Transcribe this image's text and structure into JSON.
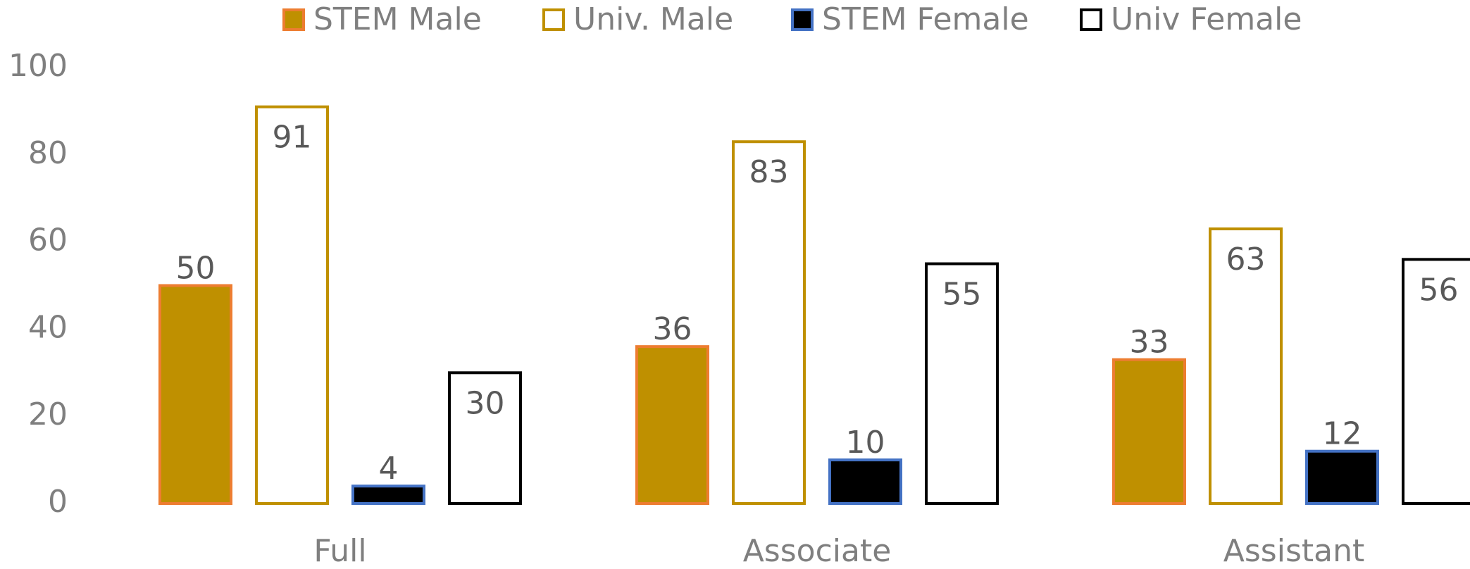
{
  "chart_data": {
    "type": "bar",
    "categories": [
      "Full",
      "Associate",
      "Assistant"
    ],
    "series": [
      {
        "name": "STEM Male",
        "color": "#bf9000",
        "edgecolor": "#ed7d31",
        "values": [
          50,
          36,
          33
        ]
      },
      {
        "name": "Univ. Male",
        "color": "#ffffff",
        "edgecolor": "#bf9000",
        "values": [
          91,
          83,
          63
        ]
      },
      {
        "name": "STEM Female",
        "color": "#000000",
        "edgecolor": "#4472c4",
        "values": [
          4,
          10,
          12
        ]
      },
      {
        "name": "Univ Female",
        "color": "#ffffff",
        "edgecolor": "#000000",
        "values": [
          30,
          55,
          56
        ]
      }
    ],
    "ylim": [
      0,
      100
    ],
    "yticks": [
      0,
      20,
      40,
      60,
      80,
      100
    ],
    "grid": false,
    "legend": "top"
  }
}
